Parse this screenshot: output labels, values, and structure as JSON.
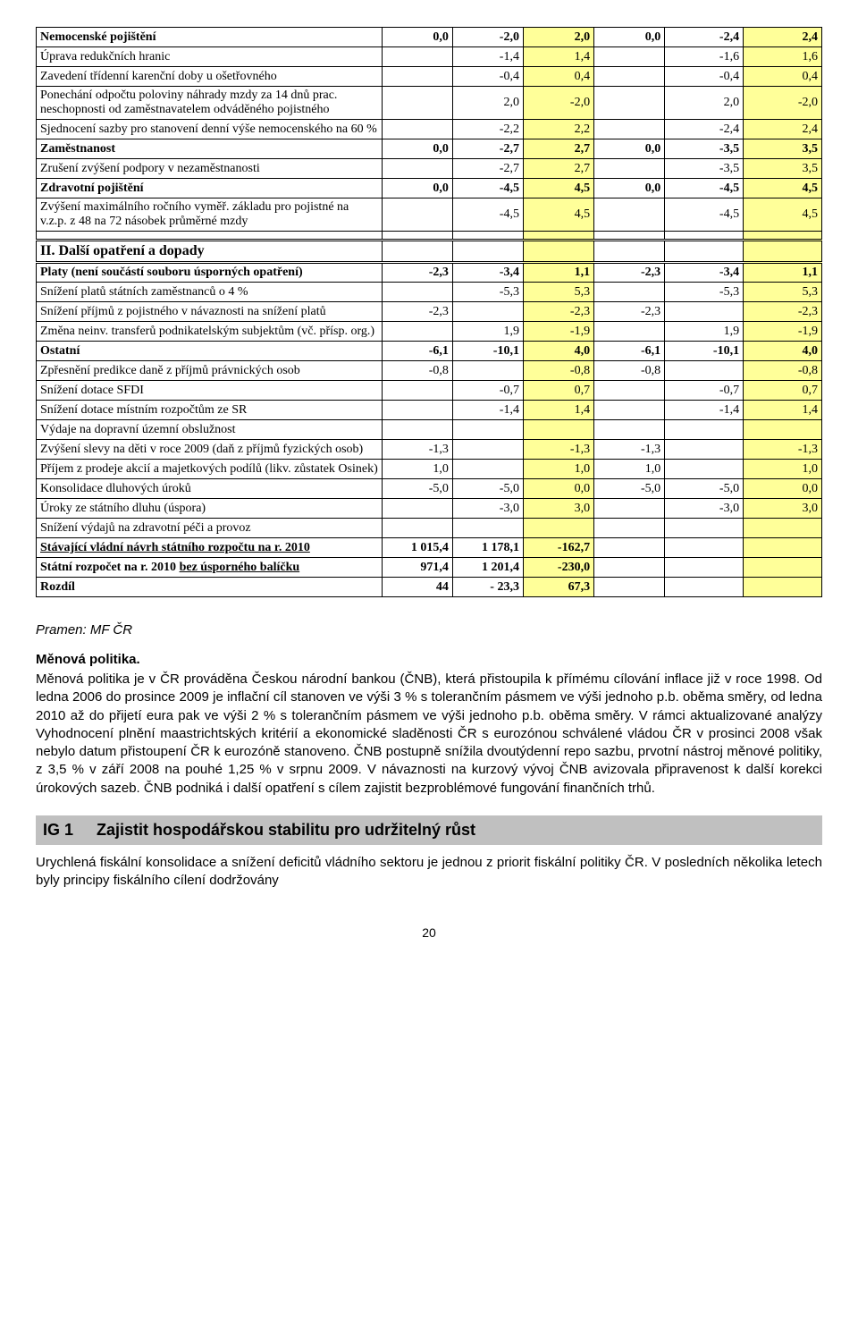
{
  "colors": {
    "highlight": "#ffff99",
    "section_bg": "#c0c0c0"
  },
  "table": {
    "col_widths_pct": [
      44,
      9,
      9,
      9,
      9,
      10,
      10
    ],
    "rows": [
      {
        "bold": true,
        "label": "Nemocenské pojištění",
        "c": [
          "0,0",
          "-2,0",
          "",
          "0,0",
          "-2,4",
          ""
        ],
        "hl": [
          false,
          false,
          true,
          false,
          false,
          true
        ],
        "hlv": [
          "2,0",
          "2,4"
        ]
      },
      {
        "label": "Úprava redukčních hranic",
        "c": [
          "",
          "-1,4",
          "",
          "",
          "-1,6",
          ""
        ],
        "hl": [
          false,
          false,
          true,
          false,
          false,
          true
        ],
        "hlv": [
          "1,4",
          "1,6"
        ]
      },
      {
        "label": "Zavedení třídenní karenční doby u ošetřovného",
        "c": [
          "",
          "-0,4",
          "",
          "",
          "-0,4",
          ""
        ],
        "hl": [
          false,
          false,
          true,
          false,
          false,
          true
        ],
        "hlv": [
          "0,4",
          "0,4"
        ]
      },
      {
        "label": "Ponechání odpočtu poloviny náhrady mzdy za 14 dnů prac. neschopnosti od zaměstnavatelem odváděného pojistného",
        "c": [
          "",
          "2,0",
          "",
          "",
          "2,0",
          ""
        ],
        "hl": [
          false,
          false,
          true,
          false,
          false,
          true
        ],
        "hlv": [
          "-2,0",
          "-2,0"
        ]
      },
      {
        "label": "Sjednocení sazby pro stanovení denní výše nemocenského na 60 %",
        "c": [
          "",
          "-2,2",
          "",
          "",
          "-2,4",
          ""
        ],
        "hl": [
          false,
          false,
          true,
          false,
          false,
          true
        ],
        "hlv": [
          "2,2",
          "2,4"
        ]
      },
      {
        "bold": true,
        "label": "Zaměstnanost",
        "c": [
          "0,0",
          "-2,7",
          "",
          "0,0",
          "-3,5",
          ""
        ],
        "hl": [
          false,
          false,
          true,
          false,
          false,
          true
        ],
        "hlv": [
          "2,7",
          "3,5"
        ]
      },
      {
        "label": "Zrušení zvýšení podpory v nezaměstnanosti",
        "c": [
          "",
          "-2,7",
          "",
          "",
          "-3,5",
          ""
        ],
        "hl": [
          false,
          false,
          true,
          false,
          false,
          true
        ],
        "hlv": [
          "2,7",
          "3,5"
        ]
      },
      {
        "bold": true,
        "label": "Zdravotní pojištění",
        "c": [
          "0,0",
          "-4,5",
          "",
          "0,0",
          "-4,5",
          ""
        ],
        "hl": [
          false,
          false,
          true,
          false,
          false,
          true
        ],
        "hlv": [
          "4,5",
          "4,5"
        ]
      },
      {
        "label": "Zvýšení maximálního ročního vyměř. základu pro pojistné na v.z.p. z 48 na 72 násobek průměrné mzdy",
        "c": [
          "",
          "-4,5",
          "",
          "",
          "-4,5",
          ""
        ],
        "hl": [
          false,
          false,
          true,
          false,
          false,
          true
        ],
        "hlv": [
          "4,5",
          "4,5"
        ]
      }
    ],
    "section2_title": "II. Další opatření a dopady",
    "rows2": [
      {
        "bold": true,
        "label": "Platy (není součástí souboru úsporných opatření)",
        "c": [
          "-2,3",
          "-3,4",
          "",
          "-2,3",
          "-3,4",
          ""
        ],
        "hl": [
          false,
          false,
          true,
          false,
          false,
          true
        ],
        "hlv": [
          "1,1",
          "1,1"
        ]
      },
      {
        "label": "Snížení platů státních zaměstnanců o 4 %",
        "c": [
          "",
          "-5,3",
          "",
          "",
          "-5,3",
          ""
        ],
        "hl": [
          false,
          false,
          true,
          false,
          false,
          true
        ],
        "hlv": [
          "5,3",
          "5,3"
        ]
      },
      {
        "label": "Snížení příjmů z pojistného v návaznosti na snížení platů",
        "c": [
          "-2,3",
          "",
          "",
          "-2,3",
          "",
          ""
        ],
        "hl": [
          false,
          false,
          true,
          false,
          false,
          true
        ],
        "hlv": [
          "-2,3",
          "-2,3"
        ]
      },
      {
        "label": "Změna neinv. transferů podnikatelským subjektům (vč. přísp. org.)",
        "c": [
          "",
          "1,9",
          "",
          "",
          "1,9",
          ""
        ],
        "hl": [
          false,
          false,
          true,
          false,
          false,
          true
        ],
        "hlv": [
          "-1,9",
          "-1,9"
        ]
      },
      {
        "bold": true,
        "label": "Ostatní",
        "c": [
          "-6,1",
          "-10,1",
          "",
          "-6,1",
          "-10,1",
          ""
        ],
        "hl": [
          false,
          false,
          true,
          false,
          false,
          true
        ],
        "hlv": [
          "4,0",
          "4,0"
        ]
      },
      {
        "label": "Zpřesnění predikce daně z příjmů právnických osob",
        "c": [
          "-0,8",
          "",
          "",
          "-0,8",
          "",
          ""
        ],
        "hl": [
          false,
          false,
          true,
          false,
          false,
          true
        ],
        "hlv": [
          "-0,8",
          "-0,8"
        ]
      },
      {
        "label": "Snížení dotace SFDI",
        "c": [
          "",
          "-0,7",
          "",
          "",
          "-0,7",
          ""
        ],
        "hl": [
          false,
          false,
          true,
          false,
          false,
          true
        ],
        "hlv": [
          "0,7",
          "0,7"
        ]
      },
      {
        "label": "Snížení dotace místním rozpočtům ze SR",
        "c": [
          "",
          "-1,4",
          "",
          "",
          "-1,4",
          ""
        ],
        "hl": [
          false,
          false,
          true,
          false,
          false,
          true
        ],
        "hlv": [
          "1,4",
          "1,4"
        ]
      },
      {
        "label": "Výdaje na dopravní územní obslužnost",
        "c": [
          "",
          "",
          "",
          "",
          "",
          ""
        ],
        "hl": [
          false,
          false,
          true,
          false,
          false,
          true
        ],
        "hlv": [
          "",
          ""
        ]
      },
      {
        "label": "Zvýšení slevy na děti v roce 2009 (daň z příjmů fyzických osob)",
        "c": [
          "-1,3",
          "",
          "",
          "-1,3",
          "",
          ""
        ],
        "hl": [
          false,
          false,
          true,
          false,
          false,
          true
        ],
        "hlv": [
          "-1,3",
          "-1,3"
        ]
      },
      {
        "label": "Příjem z prodeje akcií a majetkových podílů (likv. zůstatek Osinek)",
        "c": [
          "1,0",
          "",
          "",
          "1,0",
          "",
          ""
        ],
        "hl": [
          false,
          false,
          true,
          false,
          false,
          true
        ],
        "hlv": [
          "1,0",
          "1,0"
        ]
      },
      {
        "label": "Konsolidace dluhových úroků",
        "c": [
          "-5,0",
          "-5,0",
          "",
          "-5,0",
          "-5,0",
          ""
        ],
        "hl": [
          false,
          false,
          true,
          false,
          false,
          true
        ],
        "hlv": [
          "0,0",
          "0,0"
        ]
      },
      {
        "label": "Úroky ze státního dluhu (úspora)",
        "c": [
          "",
          "-3,0",
          "",
          "",
          "-3,0",
          ""
        ],
        "hl": [
          false,
          false,
          true,
          false,
          false,
          true
        ],
        "hlv": [
          "3,0",
          "3,0"
        ]
      },
      {
        "label": "Snížení výdajů na zdravotní péči a provoz",
        "c": [
          "",
          "",
          "",
          "",
          "",
          ""
        ],
        "hl": [
          false,
          false,
          true,
          false,
          false,
          true
        ],
        "hlv": [
          "",
          ""
        ]
      }
    ],
    "summary": [
      {
        "bold": true,
        "underline": true,
        "label": "Stávající vládní návrh státního rozpočtu na r. 2010",
        "c": [
          "1 015,4",
          "1 178,1",
          "",
          "",
          "",
          ""
        ],
        "hl": [
          false,
          false,
          true,
          false,
          false,
          true
        ],
        "hlv": [
          "-162,7",
          ""
        ]
      },
      {
        "bold": true,
        "label_html": "Státní rozpočet na r. 2010 <span class='underline'>bez úsporného balíčku</span>",
        "c": [
          "971,4",
          "1 201,4",
          "",
          "",
          "",
          ""
        ],
        "hl": [
          false,
          false,
          true,
          false,
          false,
          true
        ],
        "hlv": [
          "-230,0",
          ""
        ]
      },
      {
        "bold": true,
        "label": "Rozdíl",
        "c": [
          "44",
          "- 23,3",
          "",
          "",
          "",
          ""
        ],
        "hl": [
          false,
          false,
          true,
          false,
          false,
          true
        ],
        "hlv": [
          "67,3",
          ""
        ]
      }
    ]
  },
  "source": "Pramen: MF ČR",
  "headings": {
    "h1": "Měnová politika."
  },
  "paragraphs": {
    "p1": "Měnová politika je v ČR prováděna Českou národní bankou (ČNB), která přistoupila k přímému cílování inflace již v roce 1998. Od ledna 2006 do prosince 2009 je inflační cíl stanoven ve výši 3 % s tolerančním pásmem ve výši jednoho p.b. oběma směry, od ledna 2010 až do přijetí eura pak ve výši 2 % s tolerančním pásmem ve výši jednoho p.b. oběma směry. V rámci aktualizované analýzy Vyhodnocení plnění maastrichtských kritérií a ekonomické sladěnosti ČR s eurozónou schválené vládou ČR v prosinci 2008 však nebylo datum přistoupení ČR k eurozóně stanoveno. ČNB postupně snížila dvoutýdenní repo sazbu, prvotní nástroj měnové politiky, z 3,5 % v září 2008 na pouhé 1,25 % v srpnu 2009. V návaznosti na kurzový vývoj ČNB avizovala připravenost k další korekci úrokových sazeb. ČNB podniká i další opatření s cílem zajistit bezproblémové fungování finančních trhů."
  },
  "ig": {
    "code": "IG 1",
    "title": "Zajistit hospodářskou stabilitu pro udržitelný růst"
  },
  "p2": "Urychlená fiskální konsolidace a snížení deficitů vládního sektoru je jednou z priorit fiskální politiky ČR. V posledních několika letech byly principy fiskálního cílení dodržovány",
  "page_number": "20"
}
